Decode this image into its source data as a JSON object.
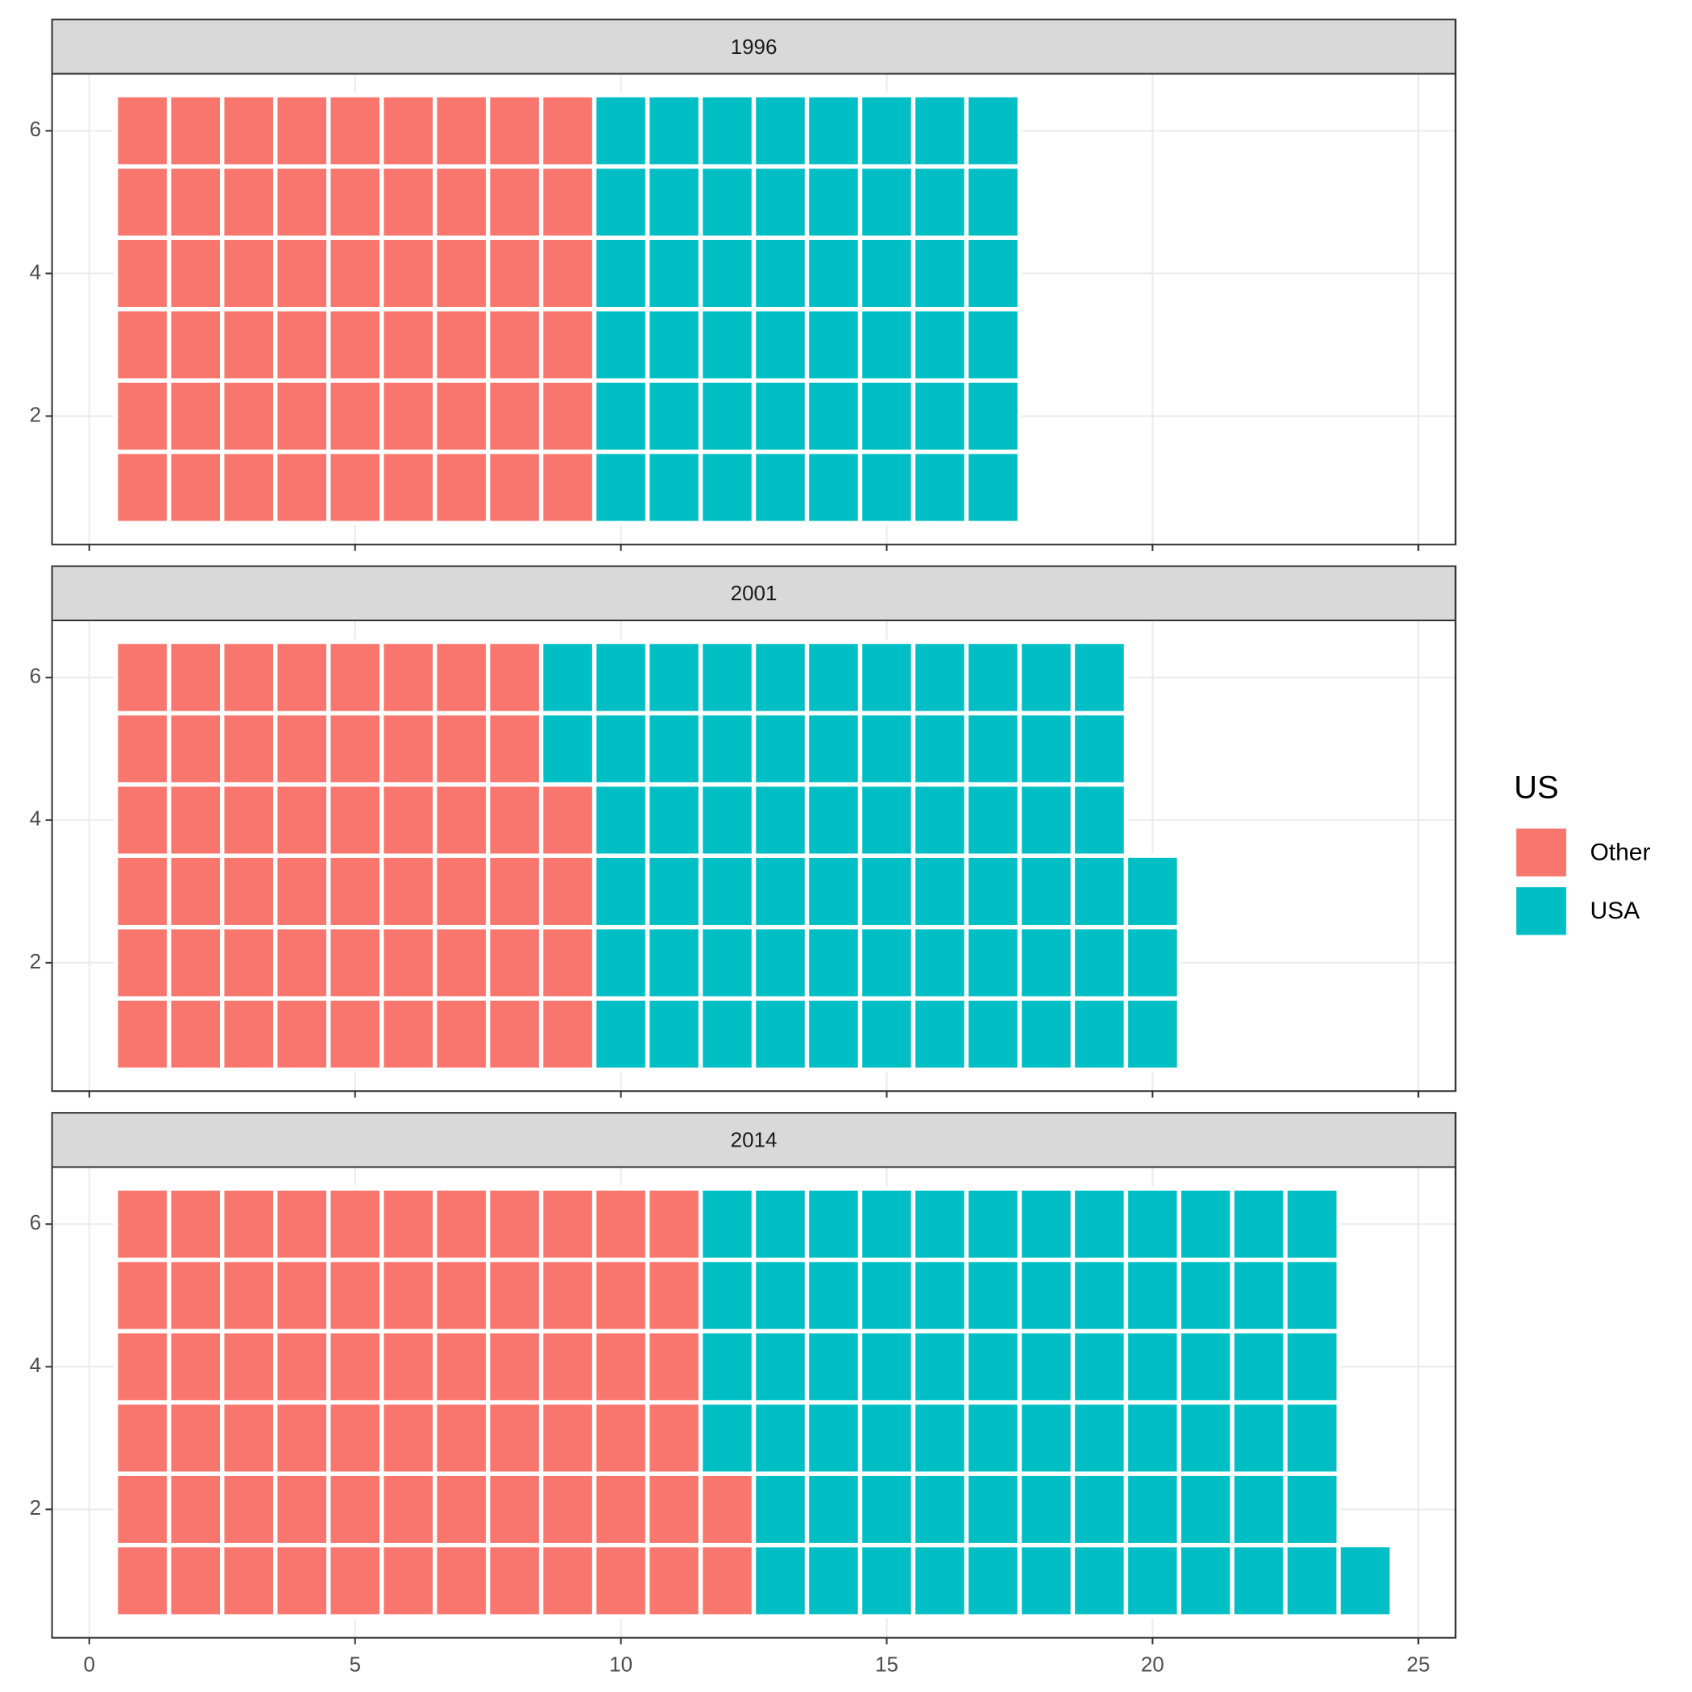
{
  "chart_data": {
    "type": "waffle",
    "categories": [
      "1996",
      "2001",
      "2014"
    ],
    "series": [
      {
        "name": "Other",
        "color": "#f8766d",
        "values": [
          54,
          52,
          68
        ]
      },
      {
        "name": "USA",
        "color": "#00bfc4",
        "values": [
          48,
          65,
          71
        ]
      }
    ],
    "rows": 6,
    "legend_title": "US",
    "legend": "right",
    "xlim": [
      -0.7,
      25.7
    ],
    "xticks": [
      0,
      5,
      10,
      15,
      20,
      25
    ],
    "ylim": [
      0.2,
      6.8
    ],
    "yticks": [
      2,
      4,
      6
    ],
    "grid": true
  }
}
